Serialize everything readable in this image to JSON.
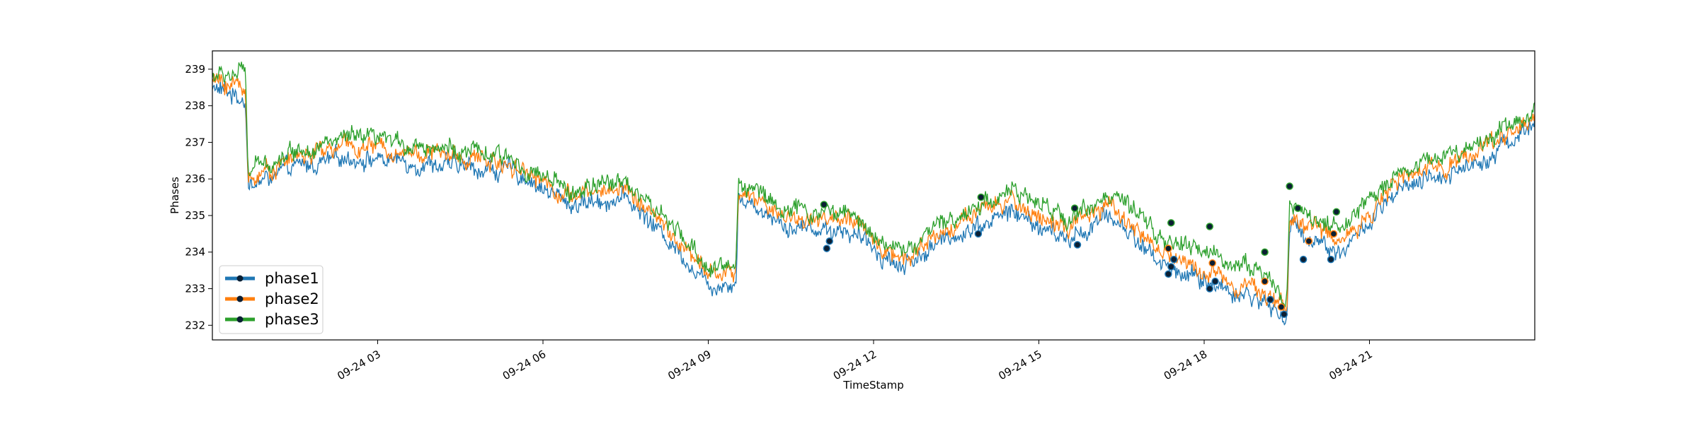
{
  "chart_data": {
    "type": "line",
    "title": "",
    "xlabel": "TimeStamp",
    "ylabel": "Phases",
    "xlim_hours": [
      0,
      24
    ],
    "ylim": [
      231.6,
      239.5
    ],
    "x_ticks": [
      {
        "hour": 3,
        "label": "09-24 03"
      },
      {
        "hour": 6,
        "label": "09-24 06"
      },
      {
        "hour": 9,
        "label": "09-24 09"
      },
      {
        "hour": 12,
        "label": "09-24 12"
      },
      {
        "hour": 15,
        "label": "09-24 15"
      },
      {
        "hour": 18,
        "label": "09-24 18"
      },
      {
        "hour": 21,
        "label": "09-24 21"
      }
    ],
    "y_ticks": [
      232,
      233,
      234,
      235,
      236,
      237,
      238,
      239
    ],
    "legend_position": "lower-left",
    "grid": false,
    "series": [
      {
        "name": "phase1",
        "color": "#1f77b4",
        "keypoints": [
          [
            0,
            238.5
          ],
          [
            0.6,
            238.2
          ],
          [
            0.65,
            235.8
          ],
          [
            1.5,
            236.3
          ],
          [
            2.5,
            236.6
          ],
          [
            4,
            236.4
          ],
          [
            5.5,
            236.2
          ],
          [
            6.5,
            235.3
          ],
          [
            7.5,
            235.5
          ],
          [
            8.5,
            234.0
          ],
          [
            9.0,
            233.1
          ],
          [
            9.5,
            233.2
          ],
          [
            9.55,
            235.5
          ],
          [
            10.5,
            234.7
          ],
          [
            11.5,
            234.6
          ],
          [
            12.5,
            233.6
          ],
          [
            13.5,
            234.5
          ],
          [
            14.5,
            235.1
          ],
          [
            15.5,
            234.3
          ],
          [
            16.3,
            235.0
          ],
          [
            17.3,
            233.6
          ],
          [
            18.0,
            233.2
          ],
          [
            19.0,
            232.7
          ],
          [
            19.5,
            232.2
          ],
          [
            19.55,
            234.7
          ],
          [
            20.5,
            234.0
          ],
          [
            21.5,
            235.6
          ],
          [
            23.0,
            236.5
          ],
          [
            24,
            237.5
          ]
        ],
        "anomalies": [
          [
            11.15,
            234.1
          ],
          [
            11.2,
            234.3
          ],
          [
            13.9,
            234.5
          ],
          [
            15.7,
            234.2
          ],
          [
            17.35,
            233.4
          ],
          [
            17.4,
            233.6
          ],
          [
            17.45,
            233.8
          ],
          [
            18.1,
            233.0
          ],
          [
            18.2,
            233.2
          ],
          [
            19.2,
            232.7
          ],
          [
            19.45,
            232.3
          ],
          [
            19.8,
            233.8
          ],
          [
            20.3,
            233.8
          ]
        ]
      },
      {
        "name": "phase2",
        "color": "#ff7f0e",
        "keypoints": [
          [
            0,
            238.7
          ],
          [
            0.6,
            238.5
          ],
          [
            0.65,
            236.0
          ],
          [
            1.5,
            236.6
          ],
          [
            2.5,
            236.9
          ],
          [
            4,
            236.7
          ],
          [
            5.5,
            236.4
          ],
          [
            6.5,
            235.5
          ],
          [
            7.5,
            235.8
          ],
          [
            8.5,
            234.2
          ],
          [
            9.0,
            233.4
          ],
          [
            9.5,
            233.4
          ],
          [
            9.55,
            235.7
          ],
          [
            10.5,
            234.9
          ],
          [
            11.5,
            234.9
          ],
          [
            12.5,
            233.8
          ],
          [
            13.5,
            234.8
          ],
          [
            14.5,
            235.4
          ],
          [
            15.5,
            234.6
          ],
          [
            16.3,
            235.3
          ],
          [
            17.3,
            233.9
          ],
          [
            18.0,
            233.5
          ],
          [
            19.0,
            233.0
          ],
          [
            19.5,
            232.4
          ],
          [
            19.55,
            235.0
          ],
          [
            20.5,
            234.3
          ],
          [
            21.5,
            235.9
          ],
          [
            23.0,
            236.8
          ],
          [
            24,
            237.7
          ]
        ],
        "anomalies": [
          [
            17.35,
            234.1
          ],
          [
            18.15,
            233.7
          ],
          [
            19.1,
            233.2
          ],
          [
            19.4,
            232.5
          ],
          [
            19.9,
            234.3
          ],
          [
            20.35,
            234.5
          ]
        ]
      },
      {
        "name": "phase3",
        "color": "#2ca02c",
        "keypoints": [
          [
            0,
            238.8
          ],
          [
            0.6,
            238.9
          ],
          [
            0.65,
            236.2
          ],
          [
            1.5,
            236.8
          ],
          [
            2.5,
            237.1
          ],
          [
            4,
            236.9
          ],
          [
            5.5,
            236.5
          ],
          [
            6.5,
            235.6
          ],
          [
            7.5,
            236.0
          ],
          [
            8.5,
            234.4
          ],
          [
            9.0,
            233.6
          ],
          [
            9.5,
            233.6
          ],
          [
            9.55,
            236.0
          ],
          [
            10.5,
            235.1
          ],
          [
            11.5,
            235.1
          ],
          [
            12.5,
            234.0
          ],
          [
            13.5,
            235.0
          ],
          [
            14.5,
            235.7
          ],
          [
            15.5,
            234.9
          ],
          [
            16.3,
            235.6
          ],
          [
            17.3,
            234.3
          ],
          [
            18.0,
            234.0
          ],
          [
            19.0,
            233.5
          ],
          [
            19.5,
            232.7
          ],
          [
            19.55,
            235.3
          ],
          [
            20.5,
            234.6
          ],
          [
            21.5,
            236.2
          ],
          [
            23.0,
            237.0
          ],
          [
            24,
            237.9
          ]
        ],
        "anomalies": [
          [
            11.1,
            235.3
          ],
          [
            13.95,
            235.5
          ],
          [
            15.65,
            235.2
          ],
          [
            17.4,
            234.8
          ],
          [
            18.1,
            234.7
          ],
          [
            19.1,
            234.0
          ],
          [
            19.55,
            235.8
          ],
          [
            19.7,
            235.2
          ],
          [
            20.4,
            235.1
          ]
        ]
      }
    ]
  }
}
